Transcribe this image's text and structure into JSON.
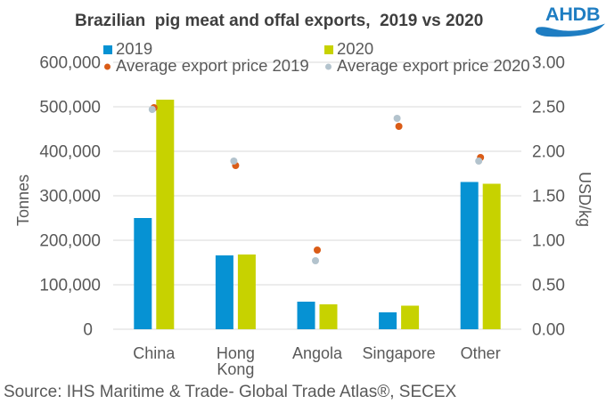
{
  "title": "Brazilian  pig meat and offal exports,  2019 vs 2020",
  "logo": {
    "text": "AHDB"
  },
  "source": "Source: IHS Maritime & Trade- Global Trade Atlas®, SECEX",
  "colors": {
    "bar2019": "#0692D3",
    "bar2020": "#C7D200",
    "price2019": "#DA5C17",
    "price2020": "#B3C3CD",
    "grid": "#D9D9D9",
    "tick_text": "#595959",
    "title_text": "#3F3F3F",
    "logo_blue": "#1E7DC2"
  },
  "chart_data": {
    "type": "bar",
    "categories": [
      "China",
      "Hong Kong",
      "Angola",
      "Singapore",
      "Other"
    ],
    "series": [
      {
        "name": "2019",
        "kind": "bar",
        "values": [
          250000,
          166000,
          62000,
          38000,
          331000
        ]
      },
      {
        "name": "2020",
        "kind": "bar",
        "values": [
          516000,
          168000,
          56000,
          53000,
          327000
        ]
      },
      {
        "name": "Average export price 2019",
        "kind": "point",
        "values": [
          2.49,
          1.84,
          0.89,
          2.28,
          1.93
        ]
      },
      {
        "name": "Average export price 2020",
        "kind": "point",
        "values": [
          2.47,
          1.89,
          0.77,
          2.37,
          1.89
        ]
      }
    ],
    "y_left": {
      "label": "Tonnes",
      "min": 0,
      "max": 600000,
      "ticks": [
        "0",
        "100,000",
        "200,000",
        "300,000",
        "400,000",
        "500,000",
        "600,000"
      ]
    },
    "y_right": {
      "label": "USD/kg",
      "min": 0,
      "max": 3,
      "ticks": [
        "0.00",
        "0.50",
        "1.00",
        "1.50",
        "2.00",
        "2.50",
        "3.00"
      ]
    },
    "grid": true,
    "legend_position": "top"
  }
}
